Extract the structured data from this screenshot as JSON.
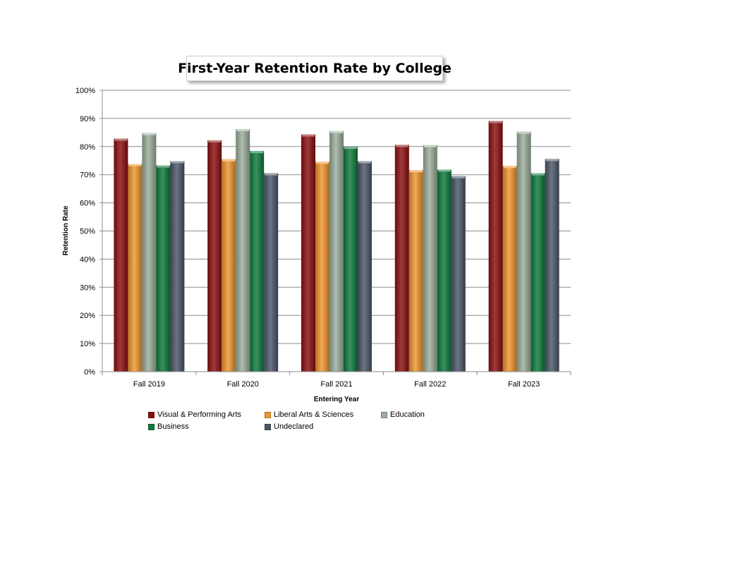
{
  "chart_data": {
    "type": "bar",
    "title": "First-Year Retention Rate by College",
    "xlabel": "Entering Year",
    "ylabel": "Retention Rate",
    "ylim": [
      0,
      100
    ],
    "yticks": [
      "0%",
      "10%",
      "20%",
      "30%",
      "40%",
      "50%",
      "60%",
      "70%",
      "80%",
      "90%",
      "100%"
    ],
    "categories": [
      "Fall 2019",
      "Fall 2020",
      "Fall 2021",
      "Fall 2022",
      "Fall 2023"
    ],
    "series": [
      {
        "name": "Visual & Performing Arts",
        "color": "#8b0e0e",
        "values": [
          82.8,
          82.2,
          84.3,
          80.6,
          89.1
        ]
      },
      {
        "name": "Liberal Arts & Sciences",
        "color": "#f0962e",
        "values": [
          73.8,
          75.5,
          74.6,
          71.6,
          73.1
        ]
      },
      {
        "name": "Education",
        "color": "#9cae9c",
        "values": [
          84.8,
          86.2,
          85.5,
          80.5,
          85.3
        ]
      },
      {
        "name": "Business",
        "color": "#0e7a3c",
        "values": [
          73.3,
          78.4,
          79.9,
          71.8,
          70.5
        ]
      },
      {
        "name": "Undeclared",
        "color": "#4a5769",
        "values": [
          74.8,
          70.5,
          74.8,
          69.5,
          75.6
        ]
      }
    ],
    "grid": true,
    "legend_position": "bottom"
  }
}
